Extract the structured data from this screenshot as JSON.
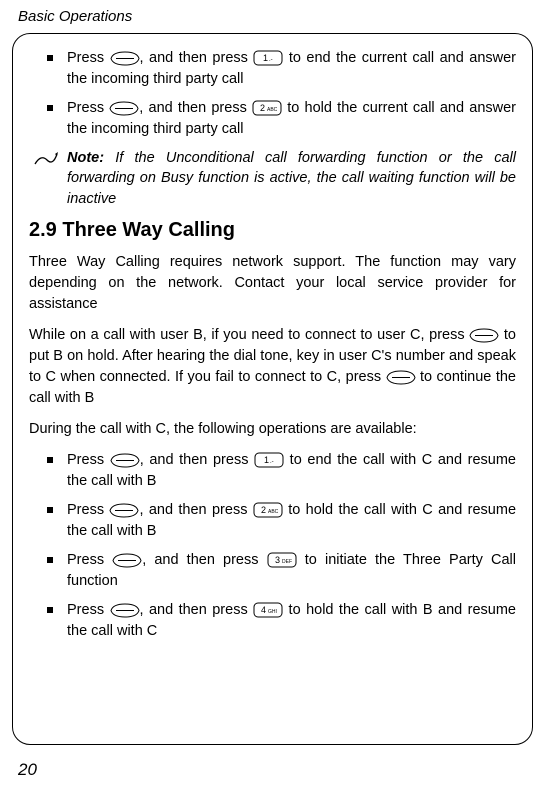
{
  "header": "Basic Operations",
  "page_number": "20",
  "bullets_top": [
    {
      "pre": "Press ",
      "k1": "soft",
      "mid": ", and then press ",
      "k2": "1",
      "post": " to end the current call and answer the incoming third party call"
    },
    {
      "pre": "Press ",
      "k1": "soft",
      "mid": ", and then press ",
      "k2": "2",
      "post": " to hold the current call and answer the incoming third party call"
    }
  ],
  "note": {
    "label": "Note:",
    "text": " If the Unconditional call forwarding function or the call forwarding on Busy function is active, the call waiting function will be inactive"
  },
  "heading": "2.9 Three Way Calling",
  "para1": "Three Way Calling requires network support. The function may vary depending on the network. Contact your local service provider for assistance",
  "para2": {
    "t1": "While on a call with user B, if you need to connect to user C, press ",
    "t2": " to put B on hold. After hearing the dial tone, key in user C's number and speak to C when connected. If you fail to connect to C, press ",
    "t3": " to continue the call with B"
  },
  "para3": "During the call with C, the following operations are available:",
  "bullets_bottom": [
    {
      "pre": "Press ",
      "k1": "soft",
      "mid": ", and then press ",
      "k2": "1",
      "post": " to end the call with C and resume the call with B"
    },
    {
      "pre": "Press ",
      "k1": "soft",
      "mid": ", and then press ",
      "k2": "2",
      "post": " to hold the call with C and resume the call with B"
    },
    {
      "pre": "Press ",
      "k1": "soft",
      "mid": ", and then press ",
      "k2": "3",
      "post": " to initiate the Three Party Call function"
    },
    {
      "pre": "Press ",
      "k1": "soft",
      "mid": ", and then press ",
      "k2": "4",
      "post": " to hold the call with B and resume the call with C"
    }
  ],
  "keys": {
    "soft_svg": "<svg viewBox='0 0 30 15'><path d='M1 7.5 Q3 1 15 1 Q27 1 29 7.5 Q27 14 15 14 Q3 14 1 7.5 Z' fill='none' stroke='#000' stroke-width='1'/><line x1='6' y1='7.5' x2='24' y2='7.5' stroke='#000' stroke-width='1'/></svg>",
    "num_svg_1": "<svg viewBox='0 0 30 16'><rect x='1' y='1' width='28' height='14' rx='4' fill='none' stroke='#000' stroke-width='1'/><text x='10' y='11' font-size='9' font-family='Arial'>1</text><text x='16' y='11' font-size='6' font-family='Arial'>.-</text></svg>",
    "num_svg_2": "<svg viewBox='0 0 30 16'><rect x='1' y='1' width='28' height='14' rx='4' fill='none' stroke='#000' stroke-width='1'/><text x='8' y='11' font-size='9' font-family='Arial'>2</text><text x='15' y='11' font-size='5' font-family='Arial'>ABC</text></svg>",
    "num_svg_3": "<svg viewBox='0 0 30 16'><rect x='1' y='1' width='28' height='14' rx='4' fill='none' stroke='#000' stroke-width='1'/><text x='8' y='11' font-size='9' font-family='Arial'>3</text><text x='15' y='11' font-size='5' font-family='Arial'>DEF</text></svg>",
    "num_svg_4": "<svg viewBox='0 0 30 16'><rect x='1' y='1' width='28' height='14' rx='4' fill='none' stroke='#000' stroke-width='1'/><text x='8' y='11' font-size='9' font-family='Arial'>4</text><text x='15' y='11' font-size='5' font-family='Arial'>GHI</text></svg>",
    "pencil_svg": "<svg viewBox='0 0 26 18'><path d='M2 14 Q8 4 14 10 Q20 16 24 4' fill='none' stroke='#000' stroke-width='1.3'/><path d='M22 4 L25 2 L24 6 Z' fill='#000'/></svg>"
  }
}
